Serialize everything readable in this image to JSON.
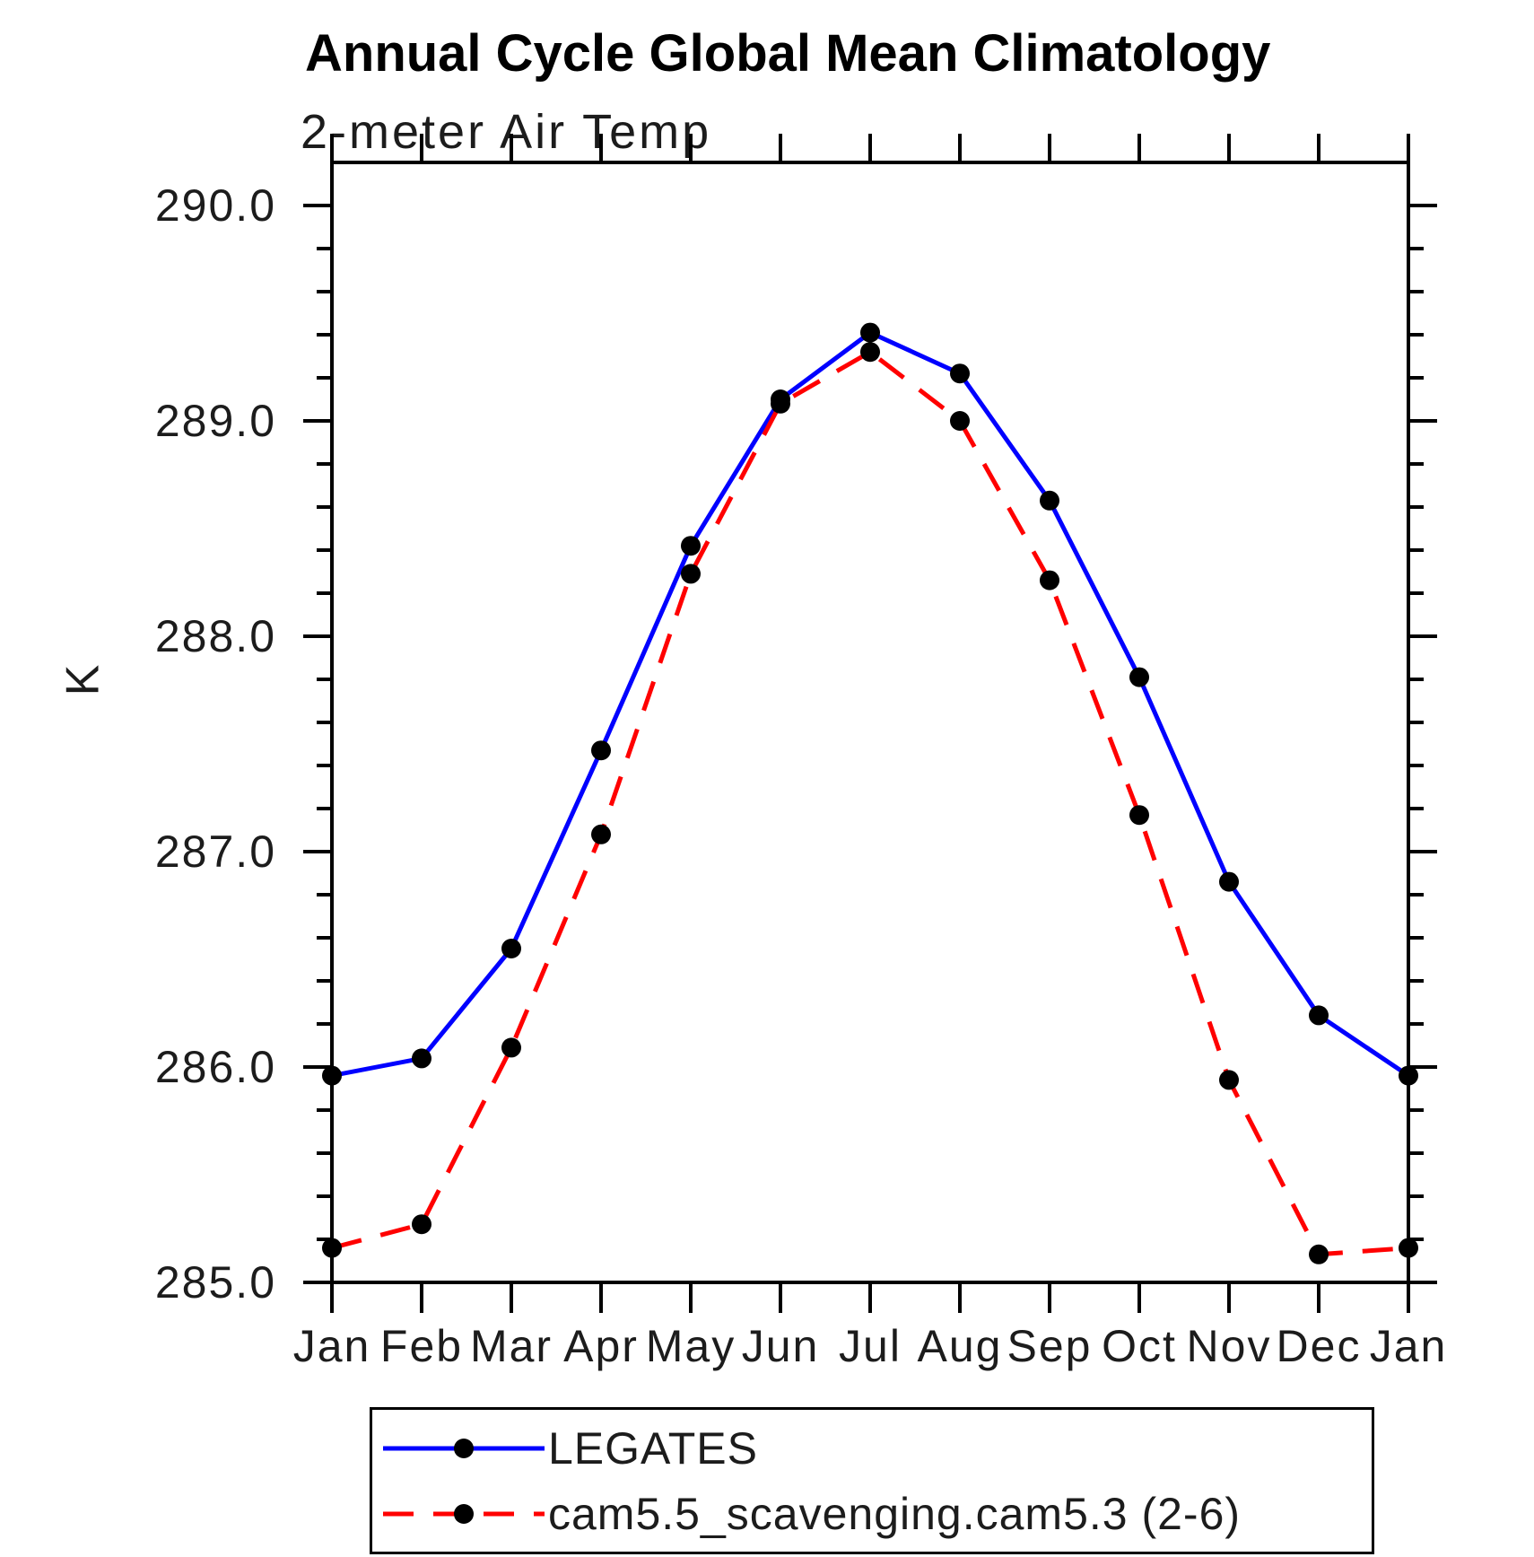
{
  "chart_data": {
    "type": "line",
    "title": "Annual Cycle Global Mean Climatology",
    "subtitle": "2-meter Air Temp",
    "ylabel": "K",
    "x_categories": [
      "Jan",
      "Feb",
      "Mar",
      "Apr",
      "May",
      "Jun",
      "Jul",
      "Aug",
      "Sep",
      "Oct",
      "Nov",
      "Dec",
      "Jan"
    ],
    "ylim": [
      285.0,
      290.2
    ],
    "ytick_major_step": 1.0,
    "ytick_minor_step": 0.2,
    "ytick_labels": [
      "285.0",
      "286.0",
      "287.0",
      "288.0",
      "289.0",
      "290.0"
    ],
    "grid": false,
    "legend_position": "bottom-left",
    "axis_color": "#000000",
    "marker_color": "#000000",
    "series": [
      {
        "name": "LEGATES",
        "color": "#0000ff",
        "line_style": "solid",
        "marker": "filled-circle",
        "values": [
          285.96,
          286.04,
          286.55,
          287.47,
          288.42,
          289.1,
          289.41,
          289.22,
          288.63,
          287.81,
          286.86,
          286.24,
          285.96
        ]
      },
      {
        "name": "cam5.5_scavenging.cam5.3 (2-6)",
        "color": "#ff0000",
        "line_style": "dashed",
        "marker": "filled-circle",
        "values": [
          285.16,
          285.27,
          286.09,
          287.08,
          288.29,
          289.08,
          289.32,
          289.0,
          288.26,
          287.17,
          285.94,
          285.13,
          285.16
        ]
      }
    ]
  }
}
